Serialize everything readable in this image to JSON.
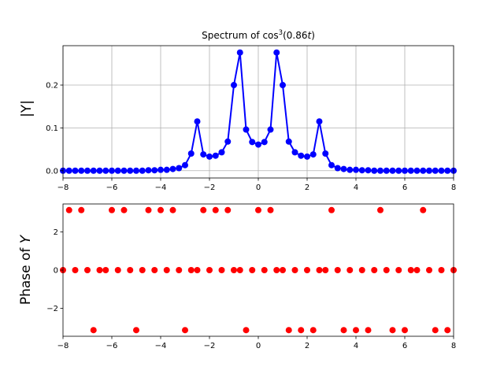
{
  "chart_data": [
    {
      "type": "line",
      "title": "Spectrum of cos",
      "title_superscript": "3",
      "title_suffix": "(0.86",
      "title_var": "t",
      "title_end": ")",
      "xlabel": "",
      "ylabel": "|Y|",
      "xlim": [
        -8,
        8
      ],
      "ylim": [
        -0.017,
        0.292
      ],
      "grid": true,
      "series_color": "#0000ff",
      "xticks": [
        -8,
        -6,
        -4,
        -2,
        0,
        2,
        4,
        6,
        8
      ],
      "xtick_labels": [
        "−8",
        "−6",
        "−4",
        "−2",
        "0",
        "2",
        "4",
        "6",
        "8"
      ],
      "yticks": [
        0.0,
        0.1,
        0.2
      ],
      "ytick_labels": [
        "0.0",
        "0.1",
        "0.2"
      ],
      "series": [
        {
          "x": [
            -8.0,
            -7.75,
            -7.5,
            -7.25,
            -7.0,
            -6.75,
            -6.5,
            -6.25,
            -6.0,
            -5.75,
            -5.5,
            -5.25,
            -5.0,
            -4.75,
            -4.5,
            -4.25,
            -4.0,
            -3.75,
            -3.5,
            -3.25,
            -3.0,
            -2.75,
            -2.5,
            -2.25,
            -2.0,
            -1.75,
            -1.5,
            -1.25,
            -1.0,
            -0.75,
            -0.5,
            -0.25,
            0.0,
            0.25,
            0.5,
            0.75,
            1.0,
            1.25,
            1.5,
            1.75,
            2.0,
            2.25,
            2.5,
            2.75,
            3.0,
            3.25,
            3.5,
            3.75,
            4.0,
            4.25,
            4.5,
            4.75,
            5.0,
            5.25,
            5.5,
            5.75,
            6.0,
            6.25,
            6.5,
            6.75,
            7.0,
            7.25,
            7.5,
            7.75,
            8.0
          ],
          "y": [
            0.0,
            0.0,
            0.0,
            0.0,
            0.0,
            0.0,
            0.0,
            0.0,
            0.0,
            0.0,
            0.0,
            0.0,
            0.0,
            0.0,
            0.001,
            0.001,
            0.002,
            0.002,
            0.004,
            0.006,
            0.013,
            0.04,
            0.115,
            0.038,
            0.033,
            0.035,
            0.043,
            0.068,
            0.2,
            0.276,
            0.096,
            0.067,
            0.061,
            0.067,
            0.096,
            0.276,
            0.2,
            0.068,
            0.043,
            0.035,
            0.033,
            0.038,
            0.115,
            0.04,
            0.013,
            0.006,
            0.004,
            0.002,
            0.002,
            0.001,
            0.001,
            0.0,
            0.0,
            0.0,
            0.0,
            0.0,
            0.0,
            0.0,
            0.0,
            0.0,
            0.0,
            0.0,
            0.0,
            0.0,
            0.0
          ]
        }
      ]
    },
    {
      "type": "scatter",
      "title": "",
      "xlabel": "",
      "ylabel": "Phase of",
      "ylabel_var": "Y",
      "xlim": [
        -8,
        8
      ],
      "ylim": [
        -3.46,
        3.46
      ],
      "grid": false,
      "series_color": "#ff0000",
      "xticks": [
        -8,
        -6,
        -4,
        -2,
        0,
        2,
        4,
        6,
        8
      ],
      "xtick_labels": [
        "−8",
        "−6",
        "−4",
        "−2",
        "0",
        "2",
        "4",
        "6",
        "8"
      ],
      "yticks": [
        -2,
        0,
        2
      ],
      "ytick_labels": [
        "−2",
        "0",
        "2"
      ],
      "series": [
        {
          "x": [
            -8.0,
            -7.75,
            -7.5,
            -7.25,
            -7.0,
            -6.75,
            -6.5,
            -6.25,
            -6.0,
            -5.75,
            -5.5,
            -5.25,
            -5.0,
            -4.75,
            -4.5,
            -4.25,
            -4.0,
            -3.75,
            -3.5,
            -3.25,
            -3.0,
            -2.75,
            -2.5,
            -2.25,
            -2.0,
            -1.75,
            -1.5,
            -1.25,
            -1.0,
            -0.75,
            -0.5,
            -0.25,
            0.0,
            0.25,
            0.5,
            0.75,
            1.0,
            1.25,
            1.5,
            1.75,
            2.0,
            2.25,
            2.5,
            2.75,
            3.0,
            3.25,
            3.5,
            3.75,
            4.0,
            4.25,
            4.5,
            4.75,
            5.0,
            5.25,
            5.5,
            5.75,
            6.0,
            6.25,
            6.5,
            6.75,
            7.0,
            7.25,
            7.5,
            7.75,
            8.0
          ],
          "y": [
            0.0,
            3.14,
            0.0,
            3.14,
            0.0,
            -3.14,
            0.0,
            0.0,
            3.14,
            0.0,
            3.14,
            0.0,
            -3.14,
            0.0,
            3.14,
            0.0,
            3.14,
            0.0,
            3.14,
            0.0,
            -3.14,
            0.0,
            0.0,
            3.14,
            0.0,
            3.14,
            0.0,
            3.14,
            0.0,
            0.0,
            -3.14,
            0.0,
            3.14,
            0.0,
            3.14,
            0.0,
            0.0,
            -3.14,
            0.0,
            -3.14,
            0.0,
            -3.14,
            0.0,
            0.0,
            3.14,
            0.0,
            -3.14,
            0.0,
            -3.14,
            0.0,
            -3.14,
            0.0,
            3.14,
            0.0,
            -3.14,
            0.0,
            -3.14,
            0.0,
            0.0,
            3.14,
            0.0,
            -3.14,
            0.0,
            -3.14,
            0.0
          ]
        }
      ]
    }
  ]
}
